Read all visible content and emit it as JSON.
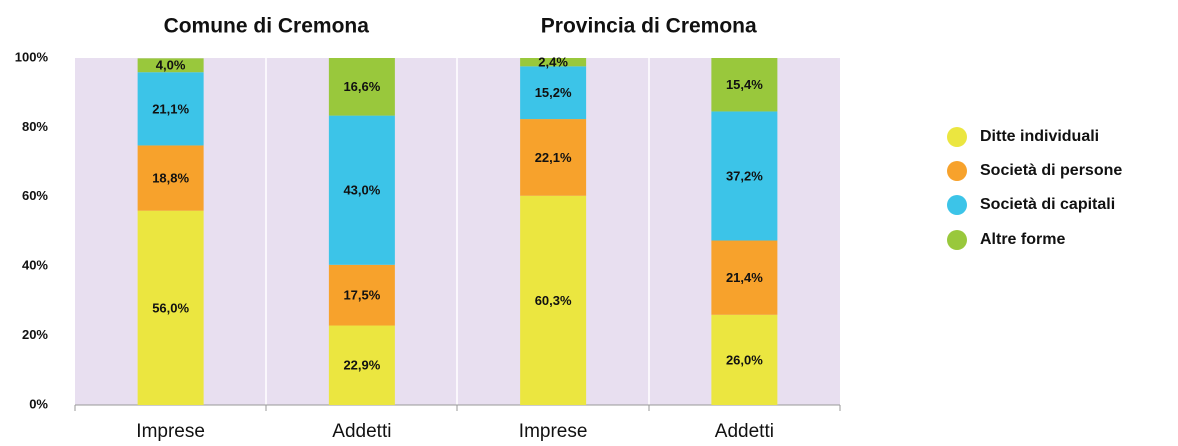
{
  "chart_data": {
    "type": "stacked_bar",
    "group_titles": [
      "Comune di Cremona",
      "Provincia di Cremona"
    ],
    "categories": [
      "Imprese",
      "Addetti",
      "Imprese",
      "Addetti"
    ],
    "series": [
      {
        "name": "Ditte individuali",
        "color": "#ebe640",
        "values": [
          56.0,
          22.9,
          60.3,
          26.0
        ],
        "value_labels": [
          "56,0%",
          "22,9%",
          "60,3%",
          "26,0%"
        ]
      },
      {
        "name": "Società di persone",
        "color": "#f7a22c",
        "values": [
          18.8,
          17.5,
          22.1,
          21.4
        ],
        "value_labels": [
          "18,8%",
          "17,5%",
          "22,1%",
          "21,4%"
        ]
      },
      {
        "name": "Società di capitali",
        "color": "#3cc4e8",
        "values": [
          21.1,
          43.0,
          15.2,
          37.2
        ],
        "value_labels": [
          "21,1%",
          "43,0%",
          "15,2%",
          "37,2%"
        ]
      },
      {
        "name": "Altre forme",
        "color": "#99c83c",
        "values": [
          4.0,
          16.6,
          2.4,
          15.4
        ],
        "value_labels": [
          "4,0%",
          "16,6%",
          "2,4%",
          "15,4%"
        ]
      }
    ],
    "ylim": [
      0,
      100
    ],
    "yticks": [
      {
        "value": 0,
        "label": "0%"
      },
      {
        "value": 20,
        "label": "20%"
      },
      {
        "value": 40,
        "label": "40%"
      },
      {
        "value": 60,
        "label": "60%"
      },
      {
        "value": 80,
        "label": "80%"
      },
      {
        "value": 100,
        "label": "100%"
      }
    ],
    "legend": "right"
  }
}
